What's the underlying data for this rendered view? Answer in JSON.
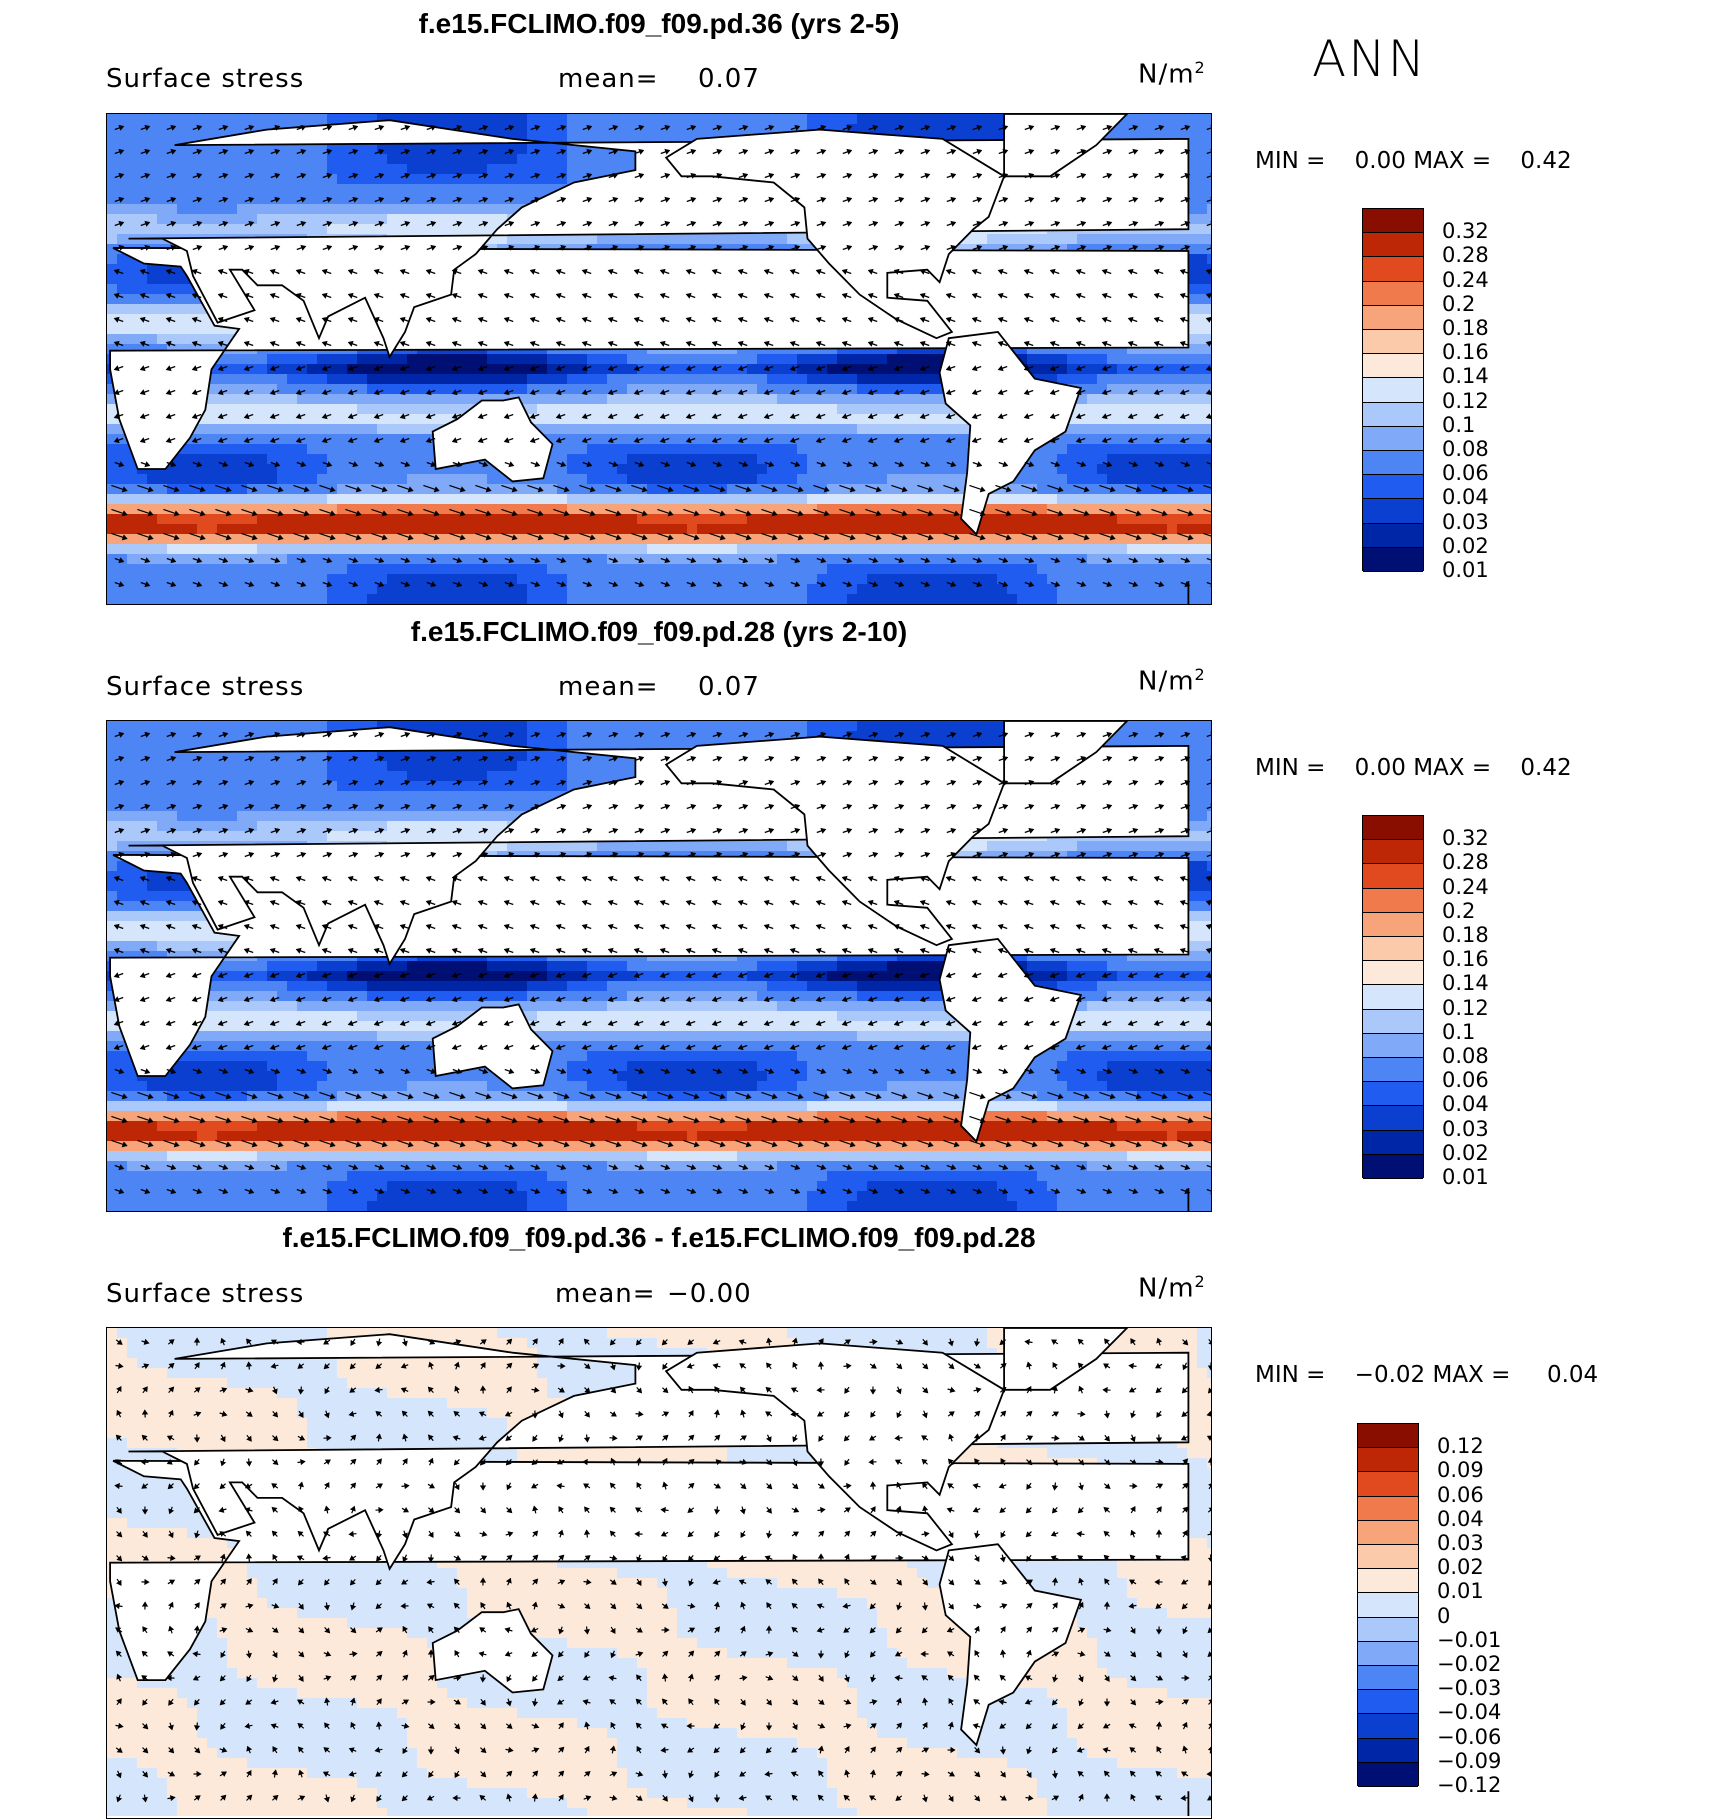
{
  "season": "ANN",
  "colors": {
    "full": [
      "#000f73",
      "#0026a8",
      "#0a3fd0",
      "#1f5cef",
      "#4d85f5",
      "#80aaf7",
      "#aac8fa",
      "#d5e6fc",
      "#fde9da",
      "#fbcaaa",
      "#f7a47a",
      "#f07a4b",
      "#e04a1e",
      "#bd2706",
      "#8a0e00"
    ],
    "diff": [
      "#000f73",
      "#0026a8",
      "#0a3fd0",
      "#1f5cef",
      "#4d85f5",
      "#80aaf7",
      "#aac8fa",
      "#d5e6fc",
      "#fde9da",
      "#fbcaaa",
      "#f7a47a",
      "#f07a4b",
      "#e04a1e",
      "#bd2706",
      "#8a0e00"
    ]
  },
  "panels": [
    {
      "title": "f.e15.FCLIMO.f09_f09.pd.36 (yrs 2-5)",
      "variable": "Surface stress",
      "mean_label": "mean=",
      "mean_value": "0.07",
      "units": "N/m",
      "units_exp": "2",
      "min_label": "MIN =",
      "min_value": "0.00",
      "max_label": "MAX =",
      "max_value": "0.42",
      "colorbar_levels": [
        "0.32",
        "0.28",
        "0.24",
        "0.2",
        "0.18",
        "0.16",
        "0.14",
        "0.12",
        "0.1",
        "0.08",
        "0.06",
        "0.04",
        "0.03",
        "0.02",
        "0.01"
      ],
      "kind": "full"
    },
    {
      "title": "f.e15.FCLIMO.f09_f09.pd.28 (yrs 2-10)",
      "variable": "Surface stress",
      "mean_label": "mean=",
      "mean_value": "0.07",
      "units": "N/m",
      "units_exp": "2",
      "min_label": "MIN =",
      "min_value": "0.00",
      "max_label": "MAX =",
      "max_value": "0.42",
      "colorbar_levels": [
        "0.32",
        "0.28",
        "0.24",
        "0.2",
        "0.18",
        "0.16",
        "0.14",
        "0.12",
        "0.1",
        "0.08",
        "0.06",
        "0.04",
        "0.03",
        "0.02",
        "0.01"
      ],
      "kind": "full"
    },
    {
      "title": "f.e15.FCLIMO.f09_f09.pd.36 - f.e15.FCLIMO.f09_f09.pd.28",
      "variable": "Surface stress",
      "mean_label": "mean=",
      "mean_value": "−0.00",
      "units": "N/m",
      "units_exp": "2",
      "min_label": "MIN =",
      "min_value": "−0.02",
      "max_label": "MAX =",
      "max_value": "0.04",
      "colorbar_levels": [
        "0.12",
        "0.09",
        "0.06",
        "0.04",
        "0.03",
        "0.02",
        "0.01",
        "0",
        "−0.01",
        "−0.02",
        "−0.03",
        "−0.04",
        "−0.06",
        "−0.09",
        "−0.12"
      ],
      "kind": "diff"
    }
  ]
}
